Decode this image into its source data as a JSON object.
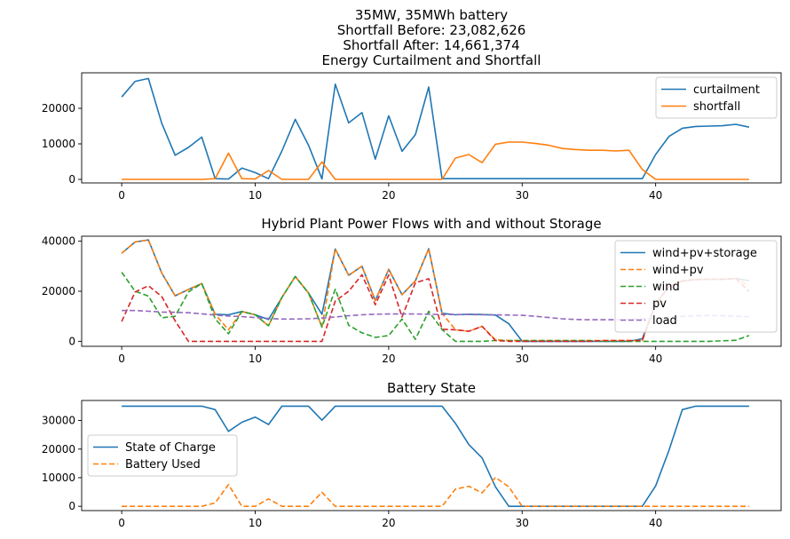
{
  "figure": {
    "title_lines": [
      "35MW, 35MWh battery",
      "Shortfall Before: 23,082,626",
      "Shortfall After: 14,661,374"
    ]
  },
  "colors": {
    "blue": "#1f77b4",
    "orange": "#ff7f0e",
    "green": "#2ca02c",
    "red": "#d62728",
    "purple": "#9467bd"
  },
  "chart_data": [
    {
      "type": "line",
      "title": "Energy Curtailment and Shortfall",
      "x": [
        0,
        1,
        2,
        3,
        4,
        5,
        6,
        7,
        8,
        9,
        10,
        11,
        12,
        13,
        14,
        15,
        16,
        17,
        18,
        19,
        20,
        21,
        22,
        23,
        24,
        25,
        26,
        27,
        28,
        29,
        30,
        31,
        32,
        33,
        34,
        35,
        36,
        37,
        38,
        39,
        40,
        41,
        42,
        43,
        44,
        45,
        46,
        47
      ],
      "xlim": [
        -3,
        49.4
      ],
      "ylim": [
        -1000,
        30000
      ],
      "xticks": [
        0,
        10,
        20,
        30,
        40
      ],
      "yticks": [
        0,
        10000,
        20000
      ],
      "legend_position": "upper right",
      "series": [
        {
          "name": "curtailment",
          "color": "#1f77b4",
          "dash": "solid",
          "values": [
            23200,
            27600,
            28400,
            15800,
            6800,
            9000,
            11900,
            200,
            100,
            3200,
            1900,
            200,
            8000,
            16900,
            9600,
            100,
            26800,
            15900,
            18800,
            5700,
            17900,
            7900,
            12600,
            26000,
            200,
            200,
            200,
            200,
            200,
            200,
            200,
            200,
            200,
            200,
            200,
            200,
            200,
            200,
            200,
            200,
            7000,
            12100,
            14400,
            14900,
            15000,
            15100,
            15500,
            14700
          ]
        },
        {
          "name": "shortfall",
          "color": "#ff7f0e",
          "dash": "solid",
          "values": [
            0,
            0,
            0,
            0,
            0,
            0,
            0,
            200,
            7400,
            200,
            100,
            2500,
            0,
            0,
            0,
            4900,
            0,
            0,
            0,
            0,
            0,
            0,
            0,
            0,
            0,
            6000,
            7000,
            4700,
            9900,
            10500,
            10500,
            10100,
            9600,
            8700,
            8400,
            8200,
            8200,
            8000,
            8200,
            2800,
            0,
            0,
            0,
            0,
            0,
            0,
            0,
            0
          ]
        }
      ]
    },
    {
      "type": "line",
      "title": "Hybrid Plant Power Flows with and without Storage",
      "x": [
        0,
        1,
        2,
        3,
        4,
        5,
        6,
        7,
        8,
        9,
        10,
        11,
        12,
        13,
        14,
        15,
        16,
        17,
        18,
        19,
        20,
        21,
        22,
        23,
        24,
        25,
        26,
        27,
        28,
        29,
        30,
        31,
        32,
        33,
        34,
        35,
        36,
        37,
        38,
        39,
        40,
        41,
        42,
        43,
        44,
        45,
        46,
        47
      ],
      "xlim": [
        -3,
        49.4
      ],
      "ylim": [
        -2000,
        42000
      ],
      "xticks": [
        0,
        10,
        20,
        30,
        40
      ],
      "yticks": [
        0,
        20000,
        40000
      ],
      "legend_position": "upper right",
      "series": [
        {
          "name": "wind+pv+storage",
          "color": "#1f77b4",
          "dash": "solid",
          "values": [
            35200,
            39700,
            40500,
            27300,
            18200,
            20700,
            23100,
            10800,
            10600,
            11900,
            10600,
            8700,
            17500,
            25900,
            19300,
            10800,
            36900,
            26400,
            30000,
            16200,
            28800,
            18600,
            24200,
            37000,
            11200,
            10600,
            10800,
            10700,
            10500,
            7000,
            0,
            0,
            0,
            0,
            0,
            0,
            0,
            0,
            0,
            1000,
            15000,
            21800,
            24100,
            24700,
            24800,
            24800,
            25100,
            24200
          ]
        },
        {
          "name": "wind+pv",
          "color": "#ff7f0e",
          "dash": "dashed",
          "values": [
            35200,
            39700,
            40500,
            27300,
            18200,
            20700,
            23100,
            10800,
            4600,
            11900,
            10600,
            6200,
            17500,
            25900,
            19300,
            5700,
            36900,
            26400,
            30000,
            16200,
            28800,
            18600,
            24200,
            37000,
            11200,
            4600,
            4000,
            6000,
            600,
            300,
            300,
            300,
            300,
            300,
            300,
            300,
            300,
            300,
            300,
            300,
            15000,
            21800,
            24100,
            24700,
            24800,
            24800,
            25100,
            22200
          ]
        },
        {
          "name": "wind",
          "color": "#2ca02c",
          "dash": "dashed",
          "values": [
            27600,
            20000,
            18100,
            9400,
            10000,
            19700,
            23100,
            9000,
            3000,
            11900,
            10600,
            6200,
            17500,
            25900,
            19300,
            5700,
            20800,
            6400,
            3400,
            1600,
            2300,
            8900,
            800,
            12000,
            4700,
            0,
            0,
            0,
            300,
            300,
            300,
            300,
            300,
            300,
            300,
            300,
            0,
            0,
            0,
            0,
            0,
            0,
            0,
            0,
            0,
            200,
            400,
            2300
          ]
        },
        {
          "name": "pv",
          "color": "#d62728",
          "dash": "dashed",
          "values": [
            7900,
            19700,
            22200,
            17900,
            8200,
            0,
            0,
            0,
            0,
            0,
            0,
            0,
            0,
            0,
            0,
            0,
            16100,
            20000,
            26600,
            14600,
            26500,
            9700,
            23400,
            25000,
            4800,
            4600,
            4000,
            6000,
            300,
            0,
            0,
            0,
            0,
            0,
            0,
            0,
            300,
            300,
            300,
            300,
            15000,
            21800,
            24100,
            24700,
            24800,
            24800,
            25100,
            19900
          ]
        },
        {
          "name": "load",
          "color": "#9467bd",
          "dash": "dashed",
          "values": [
            12300,
            12300,
            12000,
            11700,
            11600,
            11400,
            11000,
            10500,
            10100,
            9900,
            9500,
            9100,
            8900,
            8900,
            9000,
            9300,
            9700,
            10200,
            10600,
            10800,
            10900,
            10900,
            10900,
            10800,
            10700,
            10700,
            10700,
            10600,
            10600,
            10500,
            10400,
            10000,
            9500,
            9000,
            8700,
            8600,
            8600,
            8600,
            8700,
            8900,
            9200,
            9600,
            10000,
            10200,
            10300,
            10200,
            10000,
            9800
          ]
        }
      ]
    },
    {
      "type": "line",
      "title": "Battery State",
      "x": [
        0,
        1,
        2,
        3,
        4,
        5,
        6,
        7,
        8,
        9,
        10,
        11,
        12,
        13,
        14,
        15,
        16,
        17,
        18,
        19,
        20,
        21,
        22,
        23,
        24,
        25,
        26,
        27,
        28,
        29,
        30,
        31,
        32,
        33,
        34,
        35,
        36,
        37,
        38,
        39,
        40,
        41,
        42,
        43,
        44,
        45,
        46,
        47
      ],
      "xlim": [
        -3,
        49.4
      ],
      "ylim": [
        -1500,
        37000
      ],
      "xticks": [
        0,
        10,
        20,
        30,
        40
      ],
      "yticks": [
        0,
        10000,
        20000,
        30000
      ],
      "legend_position": "center left",
      "series": [
        {
          "name": "State of Charge",
          "color": "#1f77b4",
          "dash": "solid",
          "values": [
            35000,
            35000,
            35000,
            35000,
            35000,
            35000,
            35000,
            33800,
            26200,
            29400,
            31200,
            28600,
            35000,
            35000,
            35000,
            30100,
            35000,
            35000,
            35000,
            35000,
            35000,
            35000,
            35000,
            35000,
            35000,
            29000,
            21600,
            16900,
            6800,
            0,
            0,
            0,
            0,
            0,
            0,
            0,
            0,
            0,
            0,
            0,
            7100,
            19600,
            33800,
            35000,
            35000,
            35000,
            35000,
            35000
          ]
        },
        {
          "name": "Battery Used",
          "color": "#ff7f0e",
          "dash": "dashed",
          "values": [
            0,
            0,
            0,
            0,
            0,
            0,
            0,
            1200,
            7600,
            0,
            0,
            2600,
            0,
            0,
            0,
            4900,
            0,
            0,
            0,
            0,
            0,
            0,
            0,
            0,
            0,
            6000,
            7000,
            4700,
            10100,
            6800,
            0,
            0,
            0,
            0,
            0,
            0,
            0,
            0,
            0,
            0,
            0,
            0,
            0,
            0,
            0,
            0,
            0,
            0
          ]
        }
      ]
    }
  ]
}
